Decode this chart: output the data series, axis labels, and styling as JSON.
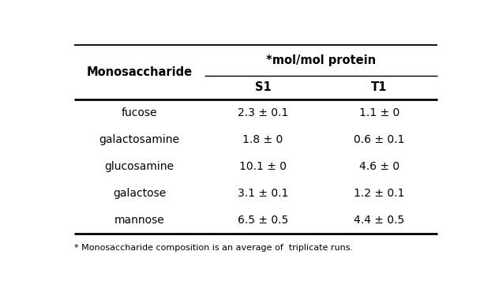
{
  "title_col": "Monosaccharide",
  "header_span": "*mol/mol protein",
  "sub_headers": [
    "S1",
    "T1"
  ],
  "rows": [
    [
      "fucose",
      "2.3 ± 0.1",
      "1.1 ± 0"
    ],
    [
      "galactosamine",
      "1.8 ± 0",
      "0.6 ± 0.1"
    ],
    [
      "glucosamine",
      "10.1 ± 0",
      "4.6 ± 0"
    ],
    [
      "galactose",
      "3.1 ± 0.1",
      "1.2 ± 0.1"
    ],
    [
      "mannose",
      "6.5 ± 0.5",
      "4.4 ± 0.5"
    ]
  ],
  "footnote": "* Monosaccharide composition is an average of  triplicate runs.",
  "bg_color": "#ffffff",
  "text_color": "#000000",
  "font_size": 10,
  "header_font_size": 10.5,
  "footnote_font_size": 8
}
